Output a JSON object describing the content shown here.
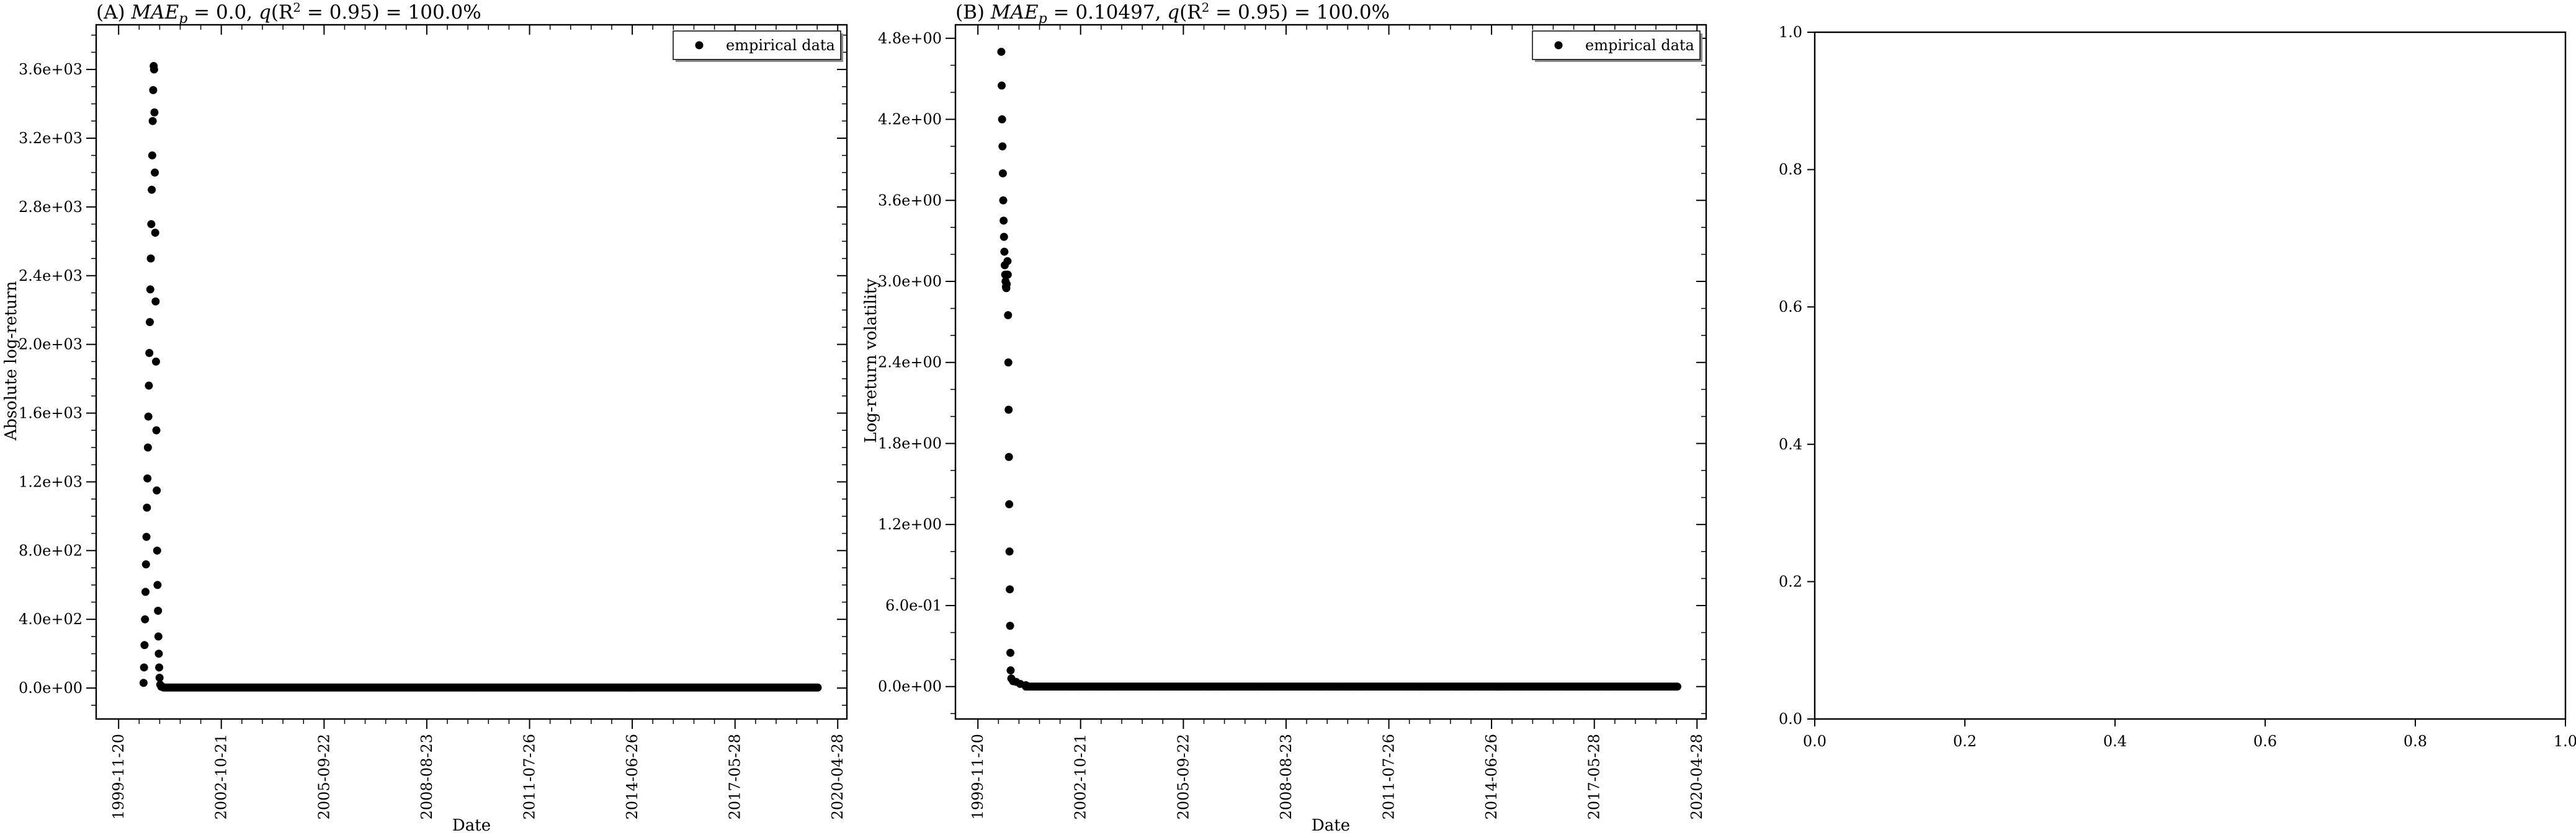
{
  "chart_data": [
    {
      "type": "scatter",
      "panel": "A",
      "title_prefix": "(A) ",
      "title_math": "MAE",
      "title_sub": "p",
      "title_rest1": " = 0.0, ",
      "title_q": "q",
      "title_r": "(R",
      "title_sup": "2",
      "title_rest2": " = 0.95) = 100.0%",
      "xlabel": "Date",
      "ylabel": "Absolute log-return",
      "x_ticks": [
        "1999-11-20",
        "2002-10-21",
        "2005-09-22",
        "2008-08-23",
        "2011-07-26",
        "2014-06-26",
        "2017-05-28",
        "2020-04-28"
      ],
      "x_range": [
        "1999-04-01",
        "2020-08-01"
      ],
      "y_ticks": [
        "0.0e+00",
        "4.0e+02",
        "8.0e+02",
        "1.2e+03",
        "1.6e+03",
        "2.0e+03",
        "2.4e+03",
        "2.8e+03",
        "3.2e+03",
        "3.6e+03"
      ],
      "y_tick_values": [
        0,
        400,
        800,
        1200,
        1600,
        2000,
        2400,
        2800,
        3200,
        3600
      ],
      "ylim": [
        -180,
        3860
      ],
      "legend": [
        "empirical data"
      ],
      "legend_position": "upper right",
      "series": [
        {
          "name": "empirical data",
          "color": "#000000",
          "points": [
            [
              "2000-08-05",
              30
            ],
            [
              "2000-08-10",
              120
            ],
            [
              "2000-08-15",
              250
            ],
            [
              "2000-08-20",
              400
            ],
            [
              "2000-08-25",
              560
            ],
            [
              "2000-08-30",
              720
            ],
            [
              "2000-09-04",
              880
            ],
            [
              "2000-09-09",
              1050
            ],
            [
              "2000-09-14",
              1220
            ],
            [
              "2000-09-19",
              1400
            ],
            [
              "2000-09-24",
              1580
            ],
            [
              "2000-09-29",
              1760
            ],
            [
              "2000-10-04",
              1950
            ],
            [
              "2000-10-09",
              2130
            ],
            [
              "2000-10-14",
              2320
            ],
            [
              "2000-10-19",
              2500
            ],
            [
              "2000-10-24",
              2700
            ],
            [
              "2000-10-29",
              2900
            ],
            [
              "2000-11-03",
              3100
            ],
            [
              "2000-11-08",
              3300
            ],
            [
              "2000-11-13",
              3480
            ],
            [
              "2000-11-18",
              3620
            ],
            [
              "2000-11-22",
              3600
            ],
            [
              "2000-11-26",
              3350
            ],
            [
              "2000-11-30",
              3000
            ],
            [
              "2000-12-04",
              2650
            ],
            [
              "2000-12-08",
              2250
            ],
            [
              "2000-12-12",
              1900
            ],
            [
              "2000-12-16",
              1500
            ],
            [
              "2000-12-20",
              1150
            ],
            [
              "2000-12-24",
              800
            ],
            [
              "2000-12-28",
              600
            ],
            [
              "2001-01-02",
              450
            ],
            [
              "2001-01-06",
              300
            ],
            [
              "2001-01-10",
              200
            ],
            [
              "2001-01-14",
              120
            ],
            [
              "2001-01-18",
              60
            ],
            [
              "2001-01-25",
              20
            ],
            [
              "2001-02-05",
              8
            ],
            [
              "2001-03-01",
              5
            ]
          ],
          "tail": {
            "from": "2001-03-01",
            "to": "2019-10-15",
            "value": 3
          }
        }
      ]
    },
    {
      "type": "scatter",
      "panel": "B",
      "title_prefix": "(B) ",
      "title_math": "MAE",
      "title_sub": "p",
      "title_rest1": " = 0.10497, ",
      "title_q": "q",
      "title_r": "(R",
      "title_sup": "2",
      "title_rest2": " = 0.95) = 100.0%",
      "xlabel": "Date",
      "ylabel": "Log-return volatility",
      "x_ticks": [
        "1999-11-20",
        "2002-10-21",
        "2005-09-22",
        "2008-08-23",
        "2011-07-26",
        "2014-06-26",
        "2017-05-28",
        "2020-04-28"
      ],
      "x_range": [
        "1999-04-01",
        "2020-08-01"
      ],
      "y_ticks": [
        "0.0e+00",
        "6.0e-01",
        "1.2e+00",
        "1.8e+00",
        "2.4e+00",
        "3.0e+00",
        "3.6e+00",
        "4.2e+00",
        "4.8e+00"
      ],
      "y_tick_values": [
        0,
        0.6,
        1.2,
        1.8,
        2.4,
        3.0,
        3.6,
        4.2,
        4.8
      ],
      "ylim": [
        -0.24,
        4.9
      ],
      "legend": [
        "empirical data"
      ],
      "legend_position": "upper right",
      "series": [
        {
          "name": "empirical data",
          "color": "#000000",
          "points": [
            [
              "2000-07-20",
              4.7
            ],
            [
              "2000-07-24",
              4.45
            ],
            [
              "2000-07-28",
              4.2
            ],
            [
              "2000-08-01",
              4.0
            ],
            [
              "2000-08-05",
              3.8
            ],
            [
              "2000-08-09",
              3.6
            ],
            [
              "2000-08-13",
              3.45
            ],
            [
              "2000-08-17",
              3.33
            ],
            [
              "2000-08-21",
              3.22
            ],
            [
              "2000-08-25",
              3.12
            ],
            [
              "2000-08-29",
              3.05
            ],
            [
              "2000-09-02",
              3.0
            ],
            [
              "2000-09-06",
              2.96
            ],
            [
              "2000-09-10",
              2.95
            ],
            [
              "2000-09-14",
              2.98
            ],
            [
              "2000-09-18",
              3.05
            ],
            [
              "2000-09-22",
              3.15
            ],
            [
              "2000-09-25",
              3.05
            ],
            [
              "2000-09-28",
              2.75
            ],
            [
              "2000-10-01",
              2.4
            ],
            [
              "2000-10-04",
              2.05
            ],
            [
              "2000-10-07",
              1.7
            ],
            [
              "2000-10-10",
              1.35
            ],
            [
              "2000-10-13",
              1.0
            ],
            [
              "2000-10-16",
              0.72
            ],
            [
              "2000-10-19",
              0.45
            ],
            [
              "2000-10-22",
              0.25
            ],
            [
              "2000-10-25",
              0.12
            ],
            [
              "2000-11-01",
              0.06
            ],
            [
              "2000-11-20",
              0.04
            ],
            [
              "2000-12-20",
              0.035
            ],
            [
              "2001-02-01",
              0.02
            ],
            [
              "2001-04-01",
              0.01
            ]
          ],
          "tail": {
            "from": "2001-04-01",
            "to": "2019-10-15",
            "value": 0.0
          }
        }
      ]
    },
    {
      "type": "scatter",
      "panel": "C",
      "title": "",
      "xlabel": "",
      "ylabel": "",
      "x_ticks": [
        "0.0",
        "0.2",
        "0.4",
        "0.6",
        "0.8",
        "1.0"
      ],
      "x_tick_values": [
        0,
        0.2,
        0.4,
        0.6,
        0.8,
        1.0
      ],
      "y_ticks": [
        "0.0",
        "0.2",
        "0.4",
        "0.6",
        "0.8",
        "1.0"
      ],
      "y_tick_values": [
        0,
        0.2,
        0.4,
        0.6,
        0.8,
        1.0
      ],
      "xlim": [
        0,
        1
      ],
      "ylim": [
        0,
        1
      ],
      "series": []
    }
  ]
}
